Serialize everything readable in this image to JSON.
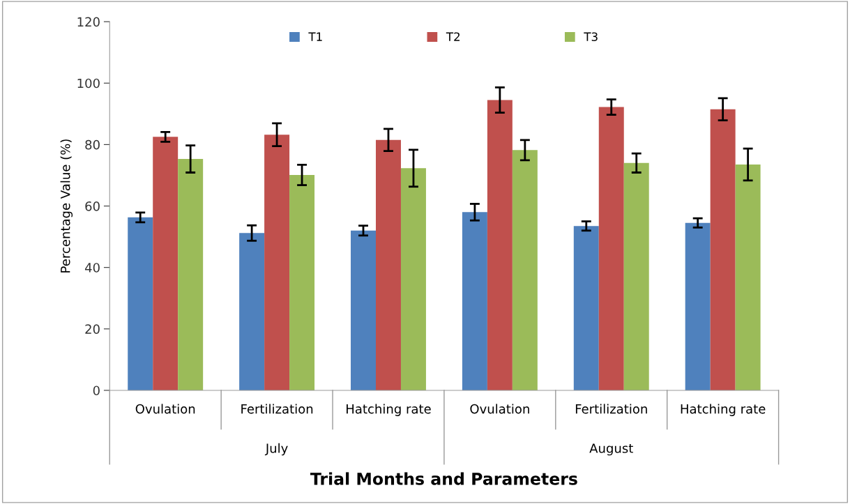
{
  "chart_data": {
    "type": "bar",
    "xlabel": "Trial Months and Parameters",
    "ylabel": "Percentage Value (%)",
    "categories": [
      "Ovulation",
      "Fertilization",
      "Hatching rate",
      "Ovulation",
      "Fertilization",
      "Hatching rate"
    ],
    "series": [
      {
        "name": "T1",
        "color": "#4f81bd",
        "values": [
          56.3,
          51.2,
          52.0,
          58.0,
          53.5,
          54.5
        ],
        "errors": [
          1.6,
          2.5,
          1.6,
          2.7,
          1.5,
          1.5
        ]
      },
      {
        "name": "T2",
        "color": "#c0504d",
        "values": [
          82.5,
          83.2,
          81.5,
          94.5,
          92.2,
          91.5
        ],
        "errors": [
          1.6,
          3.7,
          3.6,
          4.1,
          2.5,
          3.6
        ]
      },
      {
        "name": "T3",
        "color": "#9bbb59",
        "values": [
          75.3,
          70.1,
          72.3,
          78.2,
          74.0,
          73.5
        ],
        "errors": [
          4.4,
          3.3,
          6.0,
          3.3,
          3.1,
          5.2
        ]
      }
    ],
    "annotations": [
      "July",
      "August"
    ],
    "ylim": [
      0,
      120
    ],
    "yticks": [
      0,
      20,
      40,
      60,
      80,
      100,
      120
    ],
    "grid": false,
    "legend": "top"
  }
}
